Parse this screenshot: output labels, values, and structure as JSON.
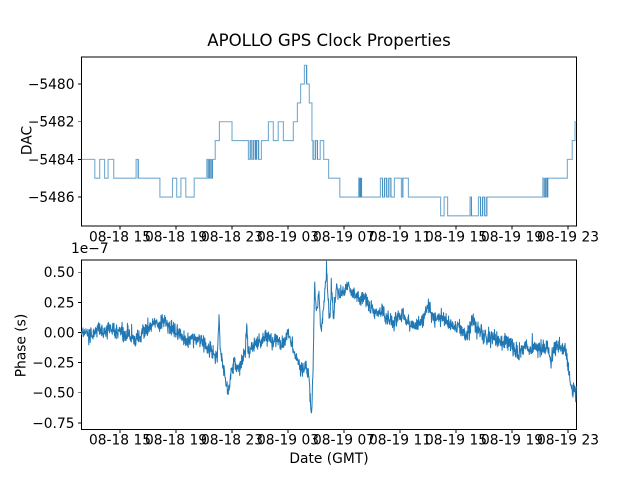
{
  "figure": {
    "title": "APOLLO GPS Clock Properties",
    "xlabel": "Date (GMT)",
    "background": "#ffffff",
    "accent_line_color": "#1f77b4"
  },
  "chart_data": [
    {
      "id": "dac",
      "type": "line",
      "line_style": "step-post",
      "ylabel": "DAC",
      "color": "#1f77b4",
      "line_alpha": 0.62,
      "grid": false,
      "legend": null,
      "x_encoding": "hours since 08-18 00:00 GMT",
      "xlim": [
        12.25,
        47.62
      ],
      "ylim": [
        -5487.54,
        -5478.56
      ],
      "xticks": {
        "values": [
          15,
          19,
          23,
          27,
          31,
          35,
          39,
          43,
          47
        ],
        "labels": [
          "08-18 15",
          "08-18 19",
          "08-18 23",
          "08-19 03",
          "08-19 07",
          "08-19 11",
          "08-19 15",
          "08-19 19",
          "08-19 23"
        ]
      },
      "yticks": {
        "values": [
          -5480,
          -5482,
          -5484,
          -5486
        ],
        "labels": [
          "−5480",
          "−5482",
          "−5484",
          "−5486"
        ]
      },
      "steps": [
        [
          12.25,
          -5484
        ],
        [
          13.2,
          -5485
        ],
        [
          13.55,
          -5484
        ],
        [
          13.9,
          -5485
        ],
        [
          14.15,
          -5484
        ],
        [
          14.55,
          -5485
        ],
        [
          16.15,
          -5484
        ],
        [
          16.3,
          -5485
        ],
        [
          17.85,
          -5486
        ],
        [
          18.75,
          -5485
        ],
        [
          19.05,
          -5486
        ],
        [
          19.35,
          -5485
        ],
        [
          19.7,
          -5486
        ],
        [
          20.3,
          -5485
        ],
        [
          21.2,
          -5484
        ],
        [
          21.3,
          -5485
        ],
        [
          21.4,
          -5484
        ],
        [
          21.5,
          -5485
        ],
        [
          21.6,
          -5484
        ],
        [
          21.8,
          -5483
        ],
        [
          22.1,
          -5482
        ],
        [
          23.0,
          -5483
        ],
        [
          24.17,
          -5484
        ],
        [
          24.3,
          -5483
        ],
        [
          24.42,
          -5484
        ],
        [
          24.55,
          -5483
        ],
        [
          24.68,
          -5484
        ],
        [
          24.76,
          -5483
        ],
        [
          24.9,
          -5484
        ],
        [
          25.1,
          -5483
        ],
        [
          25.6,
          -5482
        ],
        [
          25.95,
          -5483
        ],
        [
          26.3,
          -5482
        ],
        [
          26.67,
          -5483
        ],
        [
          27.38,
          -5482
        ],
        [
          27.67,
          -5481
        ],
        [
          27.9,
          -5480
        ],
        [
          28.17,
          -5479
        ],
        [
          28.33,
          -5480
        ],
        [
          28.52,
          -5481
        ],
        [
          28.71,
          -5483
        ],
        [
          28.79,
          -5484
        ],
        [
          28.95,
          -5483
        ],
        [
          29.1,
          -5484
        ],
        [
          29.3,
          -5483
        ],
        [
          29.55,
          -5484
        ],
        [
          29.9,
          -5485
        ],
        [
          30.7,
          -5486
        ],
        [
          32.05,
          -5485
        ],
        [
          32.12,
          -5486
        ],
        [
          32.18,
          -5485
        ],
        [
          32.25,
          -5486
        ],
        [
          33.6,
          -5485
        ],
        [
          33.75,
          -5486
        ],
        [
          33.9,
          -5485
        ],
        [
          34.05,
          -5486
        ],
        [
          34.2,
          -5485
        ],
        [
          34.35,
          -5486
        ],
        [
          34.6,
          -5485
        ],
        [
          35.1,
          -5486
        ],
        [
          35.2,
          -5485
        ],
        [
          35.6,
          -5486
        ],
        [
          37.9,
          -5487
        ],
        [
          38.15,
          -5486
        ],
        [
          38.4,
          -5487
        ],
        [
          40.0,
          -5486
        ],
        [
          40.1,
          -5487
        ],
        [
          40.6,
          -5486
        ],
        [
          40.75,
          -5487
        ],
        [
          40.9,
          -5486
        ],
        [
          41.05,
          -5487
        ],
        [
          41.2,
          -5486
        ],
        [
          45.2,
          -5485
        ],
        [
          45.3,
          -5486
        ],
        [
          45.4,
          -5485
        ],
        [
          45.5,
          -5486
        ],
        [
          45.55,
          -5485
        ],
        [
          46.95,
          -5484
        ],
        [
          47.3,
          -5483
        ],
        [
          47.5,
          -5482
        ]
      ]
    },
    {
      "id": "phase",
      "type": "line",
      "ylabel": "Phase (s)",
      "offset_text": "1e−7",
      "color": "#1f77b4",
      "grid": false,
      "legend": null,
      "x_encoding": "hours since 08-18 00:00 GMT",
      "xlim": [
        12.25,
        47.62
      ],
      "ylim": [
        -0.805,
        0.602
      ],
      "xticks": {
        "values": [
          15,
          19,
          23,
          27,
          31,
          35,
          39,
          43,
          47
        ],
        "labels": [
          "08-18 15",
          "08-18 19",
          "08-18 23",
          "08-19 03",
          "08-19 07",
          "08-19 11",
          "08-19 15",
          "08-19 19",
          "08-19 23"
        ]
      },
      "yticks": {
        "values": [
          0.5,
          0.25,
          0,
          -0.25,
          -0.5,
          -0.75
        ],
        "labels": [
          "0.50",
          "0.25",
          "0.00",
          "−0.25",
          "−0.50",
          "−0.75"
        ]
      },
      "anchors": [
        [
          12.25,
          0.0
        ],
        [
          12.6,
          -0.02
        ],
        [
          12.9,
          -0.04
        ],
        [
          13.2,
          0.01
        ],
        [
          13.5,
          0.03
        ],
        [
          13.8,
          0.0
        ],
        [
          14.1,
          0.02
        ],
        [
          14.4,
          0.04
        ],
        [
          14.7,
          0.0
        ],
        [
          15.0,
          0.02
        ],
        [
          15.3,
          -0.02
        ],
        [
          15.6,
          -0.01
        ],
        [
          15.9,
          -0.04
        ],
        [
          16.2,
          -0.06
        ],
        [
          16.5,
          -0.02
        ],
        [
          16.8,
          0.02
        ],
        [
          17.1,
          0.05
        ],
        [
          17.4,
          0.09
        ],
        [
          17.7,
          0.06
        ],
        [
          18.0,
          0.08
        ],
        [
          18.3,
          0.09
        ],
        [
          18.6,
          0.04
        ],
        [
          18.9,
          0.02
        ],
        [
          19.2,
          0.0
        ],
        [
          19.5,
          -0.03
        ],
        [
          19.8,
          -0.07
        ],
        [
          20.1,
          -0.04
        ],
        [
          20.4,
          -0.06
        ],
        [
          20.7,
          -0.05
        ],
        [
          21.0,
          -0.09
        ],
        [
          21.3,
          -0.12
        ],
        [
          21.6,
          -0.16
        ],
        [
          21.95,
          -0.24
        ],
        [
          22.07,
          0.12
        ],
        [
          22.2,
          -0.2
        ],
        [
          22.45,
          -0.34
        ],
        [
          22.72,
          -0.5
        ],
        [
          22.95,
          -0.33
        ],
        [
          23.15,
          -0.26
        ],
        [
          23.4,
          -0.31
        ],
        [
          23.65,
          -0.26
        ],
        [
          23.95,
          -0.17
        ],
        [
          24.05,
          0.06
        ],
        [
          24.15,
          -0.16
        ],
        [
          24.45,
          -0.12
        ],
        [
          24.75,
          -0.09
        ],
        [
          25.05,
          -0.07
        ],
        [
          25.35,
          -0.04
        ],
        [
          25.65,
          -0.05
        ],
        [
          25.95,
          -0.08
        ],
        [
          26.25,
          -0.05
        ],
        [
          26.55,
          -0.1
        ],
        [
          26.85,
          -0.07
        ],
        [
          27.0,
          0.03
        ],
        [
          27.15,
          -0.07
        ],
        [
          27.4,
          -0.15
        ],
        [
          27.7,
          -0.24
        ],
        [
          28.0,
          -0.31
        ],
        [
          28.3,
          -0.28
        ],
        [
          28.5,
          -0.38
        ],
        [
          28.68,
          -0.72
        ],
        [
          28.78,
          -0.3
        ],
        [
          28.9,
          0.38
        ],
        [
          29.05,
          0.16
        ],
        [
          29.2,
          0.32
        ],
        [
          29.35,
          0.02
        ],
        [
          29.55,
          0.21
        ],
        [
          29.75,
          0.54
        ],
        [
          29.95,
          0.1
        ],
        [
          30.1,
          0.33
        ],
        [
          30.25,
          0.15
        ],
        [
          30.45,
          0.36
        ],
        [
          30.7,
          0.3
        ],
        [
          31.0,
          0.34
        ],
        [
          31.3,
          0.4
        ],
        [
          31.6,
          0.33
        ],
        [
          31.9,
          0.31
        ],
        [
          32.2,
          0.27
        ],
        [
          32.5,
          0.29
        ],
        [
          32.8,
          0.21
        ],
        [
          33.1,
          0.17
        ],
        [
          33.4,
          0.15
        ],
        [
          33.7,
          0.18
        ],
        [
          34.0,
          0.12
        ],
        [
          34.3,
          0.09
        ],
        [
          34.6,
          0.07
        ],
        [
          34.9,
          0.12
        ],
        [
          35.2,
          0.15
        ],
        [
          35.5,
          0.09
        ],
        [
          35.8,
          0.07
        ],
        [
          36.1,
          0.05
        ],
        [
          36.4,
          0.08
        ],
        [
          36.7,
          0.13
        ],
        [
          37.0,
          0.23
        ],
        [
          37.3,
          0.13
        ],
        [
          37.6,
          0.11
        ],
        [
          37.9,
          0.12
        ],
        [
          38.2,
          0.09
        ],
        [
          38.5,
          0.06
        ],
        [
          38.8,
          0.05
        ],
        [
          39.1,
          0.03
        ],
        [
          39.4,
          0.02
        ],
        [
          39.7,
          -0.04
        ],
        [
          40.0,
          0.03
        ],
        [
          40.2,
          0.15
        ],
        [
          40.4,
          0.04
        ],
        [
          40.7,
          0.0
        ],
        [
          41.0,
          -0.02
        ],
        [
          41.3,
          -0.07
        ],
        [
          41.6,
          -0.03
        ],
        [
          41.9,
          -0.06
        ],
        [
          42.2,
          -0.08
        ],
        [
          42.5,
          -0.06
        ],
        [
          42.8,
          -0.1
        ],
        [
          43.1,
          -0.13
        ],
        [
          43.4,
          -0.17
        ],
        [
          43.7,
          -0.13
        ],
        [
          44.0,
          -0.11
        ],
        [
          44.3,
          -0.14
        ],
        [
          44.6,
          -0.12
        ],
        [
          44.9,
          -0.14
        ],
        [
          45.2,
          -0.11
        ],
        [
          45.5,
          -0.13
        ],
        [
          45.8,
          -0.23
        ],
        [
          46.0,
          -0.13
        ],
        [
          46.3,
          -0.11
        ],
        [
          46.6,
          -0.14
        ],
        [
          46.8,
          -0.13
        ],
        [
          47.0,
          -0.26
        ],
        [
          47.2,
          -0.43
        ],
        [
          47.35,
          -0.53
        ],
        [
          47.45,
          -0.44
        ],
        [
          47.55,
          -0.56
        ],
        [
          47.62,
          -0.42
        ]
      ],
      "noise": {
        "std": 0.032,
        "spike_prob": 0.02,
        "spike_scale": 0.09,
        "seed": 9,
        "dt": 0.02
      }
    }
  ]
}
